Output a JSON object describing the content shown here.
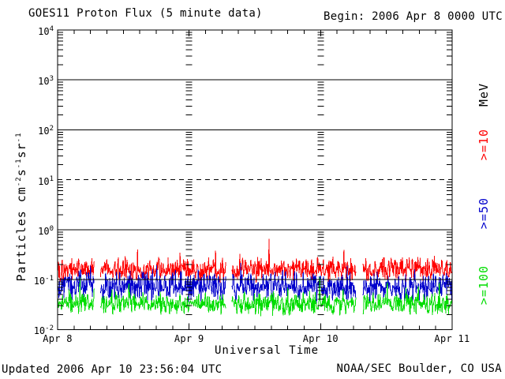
{
  "chart_data": {
    "type": "line",
    "title": "GOES11 Proton Flux (5 minute data)",
    "begin_label": "Begin: 2006 Apr 8 0000 UTC",
    "xlabel": "Universal Time",
    "ylabel_text": "Particles cm-2s-1sr-1",
    "ylabel_segments": [
      {
        "text": "Particles cm"
      },
      {
        "sup": "-2"
      },
      {
        "text": "s"
      },
      {
        "sup": "-1"
      },
      {
        "text": "sr"
      },
      {
        "sup": "-1"
      }
    ],
    "x_axis": {
      "range_hours": 72,
      "minor_tick_interval_hours": 3,
      "day_ticks": [
        {
          "label": "Apr 8",
          "hour": 0
        },
        {
          "label": "Apr 9",
          "hour": 24
        },
        {
          "label": "Apr 10",
          "hour": 48
        },
        {
          "label": "Apr 11",
          "hour": 72
        }
      ],
      "day_gridline_hours": [
        24,
        48
      ]
    },
    "y_axis": {
      "log_min": -2,
      "log_max": 4,
      "ticks": [
        {
          "base": "10",
          "exp": "4"
        },
        {
          "base": "10",
          "exp": "3"
        },
        {
          "base": "10",
          "exp": "2"
        },
        {
          "base": "10",
          "exp": "1"
        },
        {
          "base": "10",
          "exp": "0"
        },
        {
          "base": "10",
          "exp": "-1"
        },
        {
          "base": "10",
          "exp": "-2"
        }
      ],
      "solid_gridline_logs": [
        3,
        2,
        0,
        -1
      ],
      "dashed_gridline_logs": [
        1
      ]
    },
    "right_axis": {
      "labels": [
        {
          "text": "MeV",
          "color": "#000000"
        },
        {
          "text": ">=10",
          "color": "#ff0000"
        },
        {
          "text": ">=50",
          "color": "#0000cc"
        },
        {
          "text": ">=100",
          "color": "#00dd00"
        }
      ]
    },
    "series": [
      {
        "name": ">=10 MeV protons",
        "color": "#ff0000",
        "median_flux_approx": 0.16,
        "typical_range": [
          0.08,
          0.32
        ],
        "peak_approx": 0.65,
        "log10_median": -0.8,
        "log10_halfwidth": 0.29,
        "spike_chance": 0.025,
        "spike_log10_max_boost": 0.5,
        "log10_cap": -0.185,
        "log10_floor": -1.35,
        "seed": 101
      },
      {
        "name": ">=50 MeV protons",
        "color": "#0000cc",
        "median_flux_approx": 0.074,
        "typical_range": [
          0.033,
          0.17
        ],
        "peak_approx": 0.24,
        "log10_median": -1.13,
        "log10_halfwidth": 0.35,
        "spike_chance": 0.02,
        "spike_log10_max_boost": 0.4,
        "log10_cap": -0.62,
        "log10_floor": -1.62,
        "seed": 202
      },
      {
        "name": ">=100 MeV protons",
        "color": "#00dd00",
        "median_flux_approx": 0.033,
        "typical_range": [
          0.018,
          0.06
        ],
        "peak_approx": 0.11,
        "log10_median": -1.48,
        "log10_halfwidth": 0.26,
        "spike_chance": 0.012,
        "spike_log10_max_boost": 0.45,
        "log10_cap": -0.95,
        "log10_floor": -1.76,
        "seed": 303
      }
    ],
    "data_gaps_hours": [
      [
        6.7,
        7.8
      ],
      [
        30.7,
        31.8
      ],
      [
        54.5,
        55.7
      ]
    ],
    "samples_per_series": 864,
    "cadence_minutes": 5
  },
  "footer": {
    "updated": "Updated 2006 Apr 10 23:56:04 UTC",
    "source": "NOAA/SEC Boulder, CO USA"
  }
}
